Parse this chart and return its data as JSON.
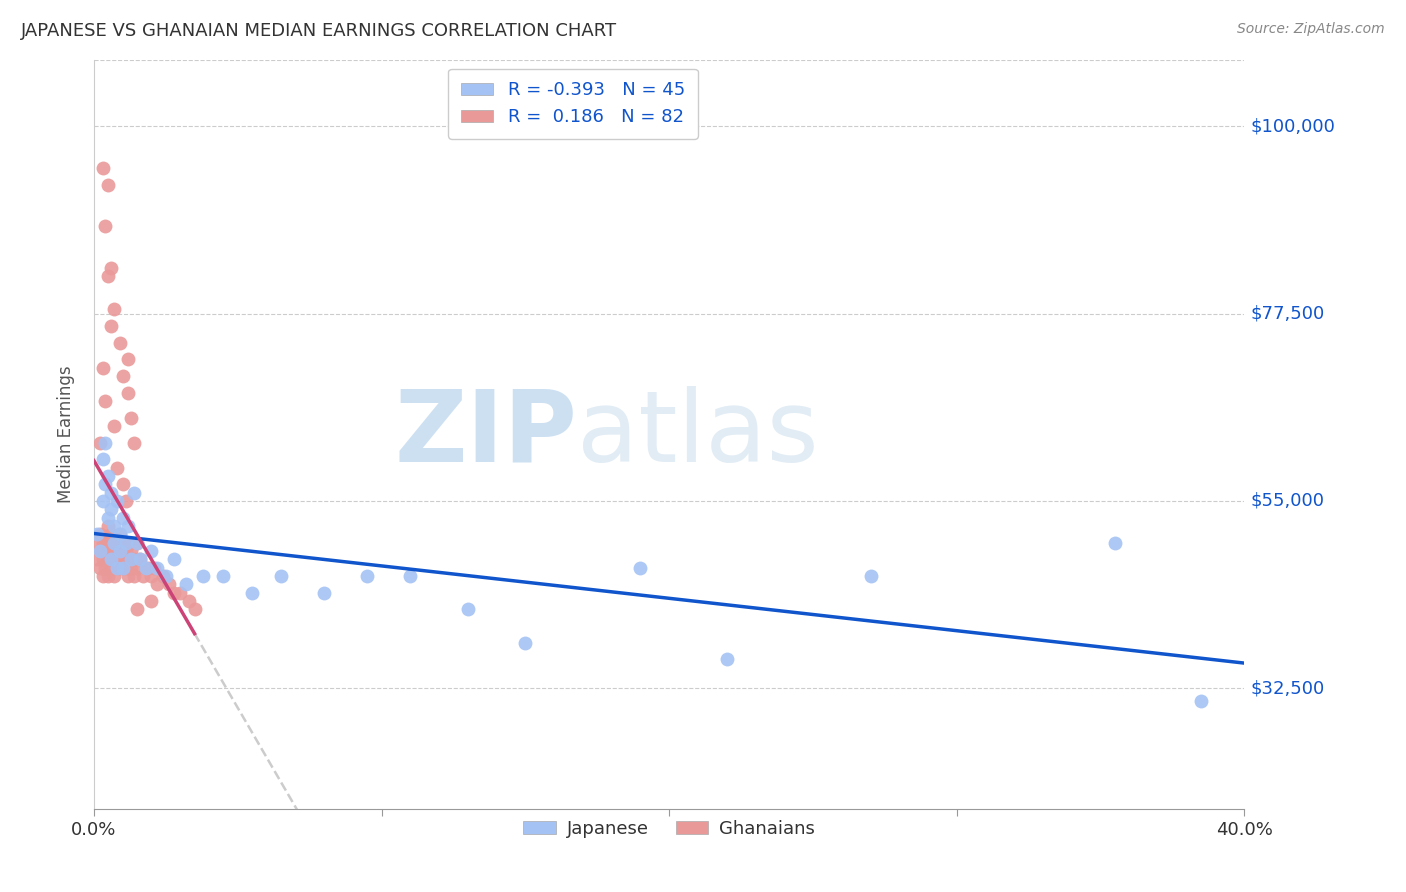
{
  "title": "JAPANESE VS GHANAIAN MEDIAN EARNINGS CORRELATION CHART",
  "source": "Source: ZipAtlas.com",
  "ylabel": "Median Earnings",
  "xlim": [
    0.0,
    0.4
  ],
  "ylim": [
    18000,
    108000
  ],
  "yticks": [
    32500,
    55000,
    77500,
    100000
  ],
  "ytick_labels": [
    "$32,500",
    "$55,000",
    "$77,500",
    "$100,000"
  ],
  "legend_r_japanese": "-0.393",
  "legend_n_japanese": "45",
  "legend_r_ghanaian": " 0.186",
  "legend_n_ghanaian": "82",
  "blue_color": "#a4c2f4",
  "pink_color": "#ea9999",
  "blue_line_color": "#1155cc",
  "pink_line_color": "#cc4477",
  "japanese_x": [
    0.001,
    0.002,
    0.003,
    0.003,
    0.004,
    0.004,
    0.005,
    0.005,
    0.006,
    0.006,
    0.006,
    0.007,
    0.007,
    0.008,
    0.008,
    0.009,
    0.009,
    0.01,
    0.01,
    0.011,
    0.012,
    0.013,
    0.014,
    0.015,
    0.016,
    0.018,
    0.02,
    0.022,
    0.025,
    0.028,
    0.032,
    0.038,
    0.045,
    0.055,
    0.065,
    0.08,
    0.095,
    0.11,
    0.13,
    0.15,
    0.19,
    0.22,
    0.27,
    0.355,
    0.385
  ],
  "japanese_y": [
    51000,
    49000,
    55000,
    60000,
    57000,
    62000,
    58000,
    53000,
    56000,
    48000,
    54000,
    50000,
    52000,
    47000,
    55000,
    49000,
    51000,
    47000,
    53000,
    50000,
    52000,
    48000,
    56000,
    50000,
    48000,
    47000,
    49000,
    47000,
    46000,
    48000,
    45000,
    46000,
    46000,
    44000,
    46000,
    44000,
    46000,
    46000,
    42000,
    38000,
    47000,
    36000,
    46000,
    50000,
    31000
  ],
  "ghanaian_x": [
    0.001,
    0.001,
    0.002,
    0.002,
    0.002,
    0.003,
    0.003,
    0.003,
    0.004,
    0.004,
    0.004,
    0.005,
    0.005,
    0.005,
    0.005,
    0.006,
    0.006,
    0.006,
    0.006,
    0.007,
    0.007,
    0.007,
    0.007,
    0.008,
    0.008,
    0.008,
    0.009,
    0.009,
    0.009,
    0.009,
    0.01,
    0.01,
    0.01,
    0.01,
    0.011,
    0.011,
    0.011,
    0.012,
    0.012,
    0.012,
    0.013,
    0.013,
    0.013,
    0.014,
    0.014,
    0.015,
    0.015,
    0.016,
    0.017,
    0.018,
    0.019,
    0.02,
    0.021,
    0.022,
    0.024,
    0.026,
    0.028,
    0.03,
    0.033,
    0.035,
    0.007,
    0.008,
    0.01,
    0.011,
    0.012,
    0.005,
    0.006,
    0.007,
    0.009,
    0.01,
    0.012,
    0.013,
    0.014,
    0.003,
    0.004,
    0.005,
    0.006,
    0.003,
    0.004,
    0.002,
    0.015,
    0.02
  ],
  "ghanaian_y": [
    48000,
    50000,
    51000,
    47000,
    49000,
    50000,
    48000,
    46000,
    50000,
    47000,
    49000,
    48000,
    50000,
    46000,
    52000,
    49000,
    47000,
    51000,
    48000,
    50000,
    48000,
    46000,
    49000,
    47000,
    50000,
    48000,
    49000,
    47000,
    51000,
    48000,
    49000,
    47000,
    50000,
    48000,
    50000,
    47000,
    49000,
    48000,
    46000,
    50000,
    49000,
    47000,
    50000,
    48000,
    46000,
    50000,
    47000,
    48000,
    46000,
    47000,
    47000,
    46000,
    47000,
    45000,
    46000,
    45000,
    44000,
    44000,
    43000,
    42000,
    64000,
    59000,
    57000,
    55000,
    68000,
    93000,
    83000,
    78000,
    74000,
    70000,
    72000,
    65000,
    62000,
    95000,
    88000,
    82000,
    76000,
    71000,
    67000,
    62000,
    42000,
    43000
  ]
}
